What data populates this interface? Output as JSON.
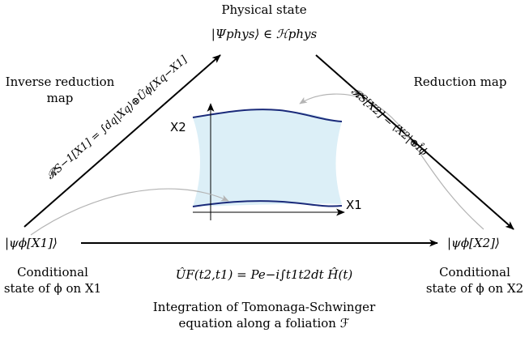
{
  "top": {
    "heading": "Physical state",
    "formula": "|Ψphys⟩ ∈ ℋphys"
  },
  "left_map": {
    "title_line1": "Inverse reduction",
    "title_line2": "map",
    "formula": "𝓡S−1[X1] = ∫dq|Xq⟩⊕Ûϕ[Xq−X1]"
  },
  "right_map": {
    "title": "Reduction map",
    "formula": "𝓡S[X2] = ⟨X2|⊕Îϕ"
  },
  "left_state": {
    "ket": "|ψϕ[X1]⟩",
    "caption_line1": "Conditional",
    "caption_line2": "state of ϕ on X1"
  },
  "right_state": {
    "ket": "|ψϕ[X2]⟩",
    "caption_line1": "Conditional",
    "caption_line2": "state of ϕ on X2"
  },
  "bottom": {
    "evolution_formula": "ÛF(t2,t1) = Pe−i∫t1t2dt Ĥ(t)",
    "caption_line1": "Integration of Tomonaga-Schwinger",
    "caption_line2": "equation along a foliation ℱ"
  },
  "inset": {
    "upper_slice_label": "X2",
    "lower_slice_label": "X1"
  },
  "colors": {
    "region_fill": "#dceff7",
    "slice_curve": "#1a2a7a",
    "gray_arrow": "#b4b4b4",
    "main_arrow": "#000000"
  }
}
